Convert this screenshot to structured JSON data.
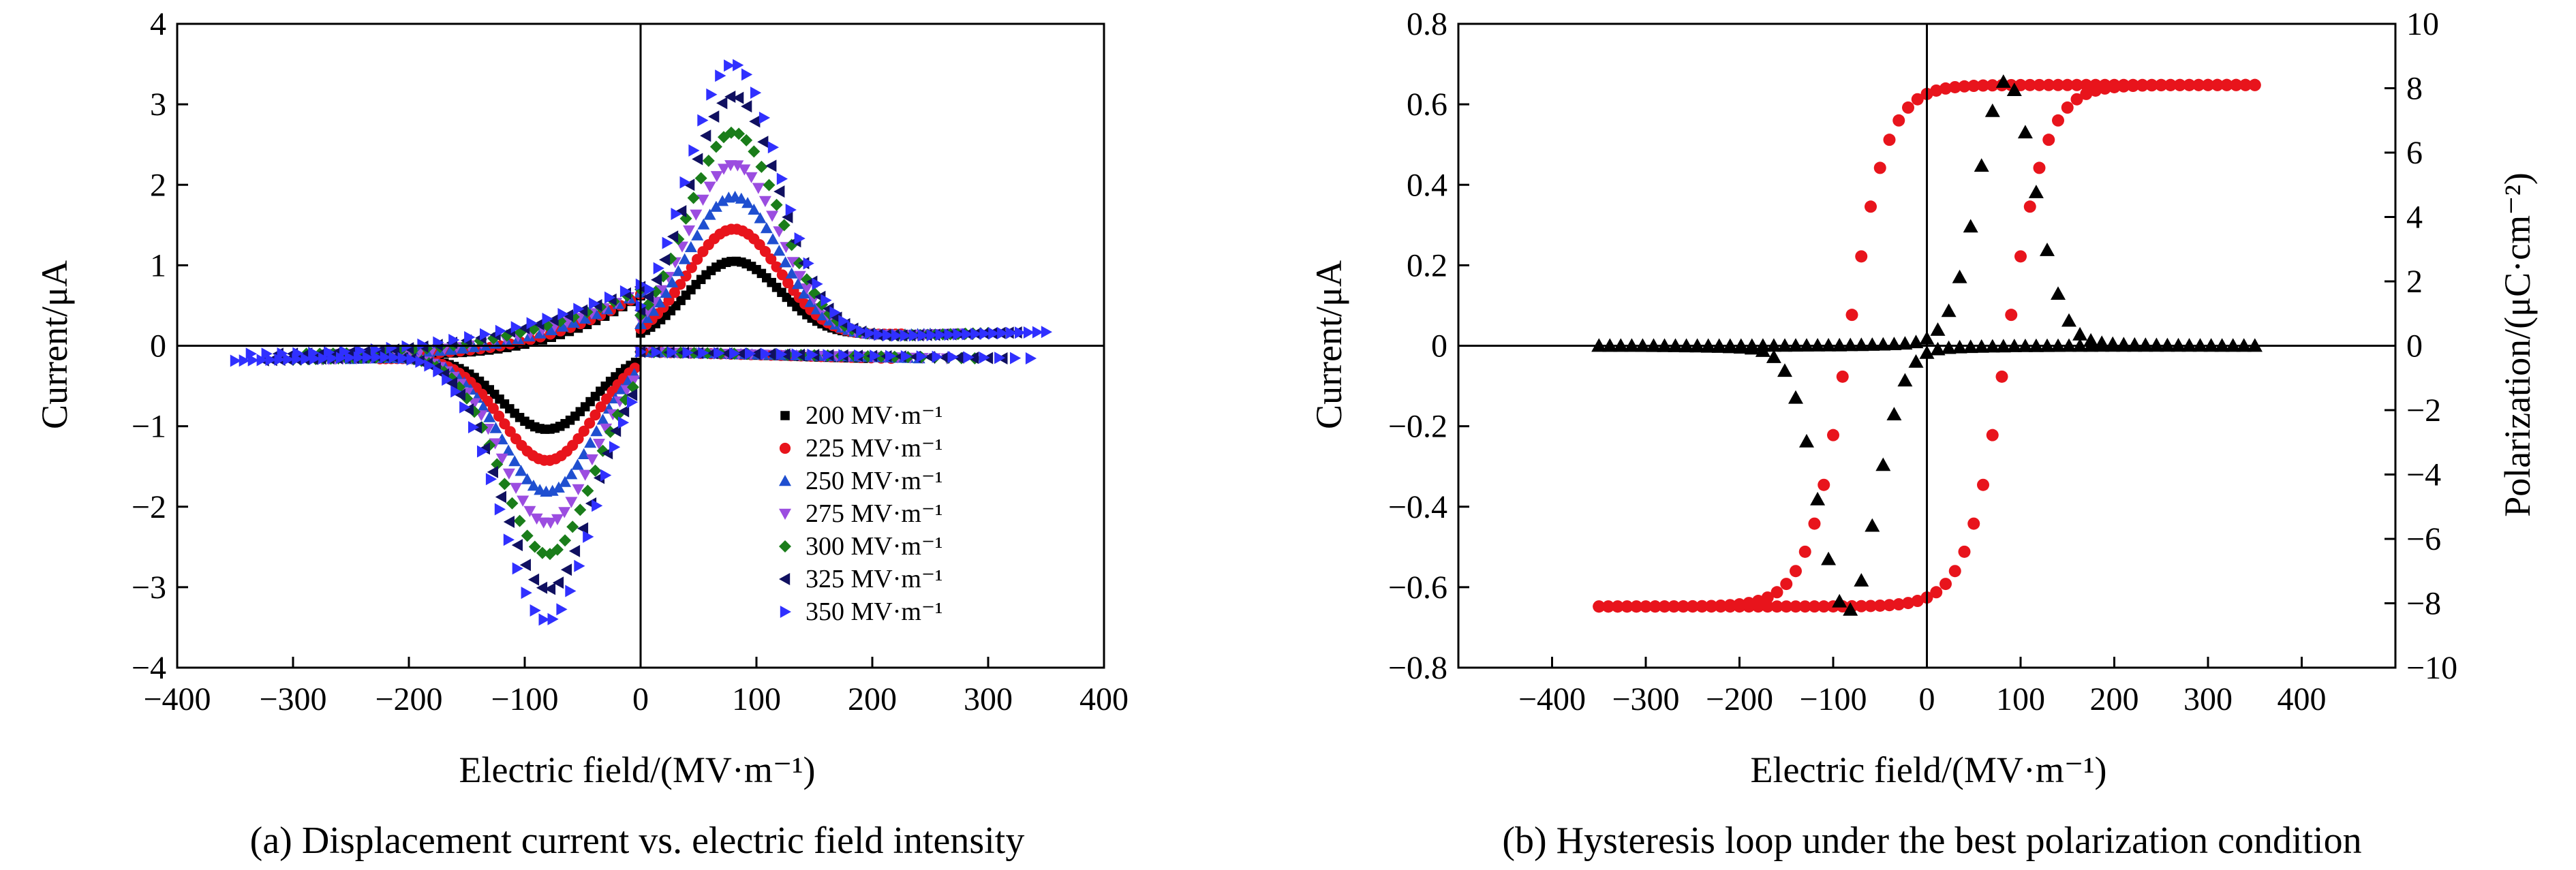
{
  "captions": {
    "a": "(a) Displacement current vs. electric field intensity",
    "b": "(b) Hysteresis loop under the best polarization condition"
  },
  "chart_data": [
    {
      "type": "scatter",
      "id": "a",
      "xlabel": "Electric field/(MV·m⁻¹)",
      "ylabel": "Current/μA",
      "xlim": [
        -400,
        400
      ],
      "ylim": [
        -4,
        4
      ],
      "xticks": [
        -400,
        -300,
        -200,
        -100,
        0,
        100,
        200,
        300,
        400
      ],
      "yticks": [
        -4,
        -3,
        -2,
        -1,
        0,
        1,
        2,
        3,
        4
      ],
      "legend_position": "bottom-right",
      "series": [
        {
          "name": "200 MV·m⁻¹",
          "Emax": 200,
          "peak": 1.05,
          "i0": 0.62,
          "color": "#000000",
          "marker": "square"
        },
        {
          "name": "225 MV·m⁻¹",
          "Emax": 225,
          "peak": 1.45,
          "i0": 0.64,
          "color": "#e8141c",
          "marker": "circle"
        },
        {
          "name": "250 MV·m⁻¹",
          "Emax": 250,
          "peak": 1.85,
          "i0": 0.66,
          "color": "#1f4fd0",
          "marker": "triangle-up"
        },
        {
          "name": "275 MV·m⁻¹",
          "Emax": 275,
          "peak": 2.25,
          "i0": 0.68,
          "color": "#9b4de0",
          "marker": "triangle-down"
        },
        {
          "name": "300 MV·m⁻¹",
          "Emax": 300,
          "peak": 2.65,
          "i0": 0.7,
          "color": "#1a7d1a",
          "marker": "diamond"
        },
        {
          "name": "325 MV·m⁻¹",
          "Emax": 325,
          "peak": 3.1,
          "i0": 0.73,
          "color": "#101060",
          "marker": "triangle-left"
        },
        {
          "name": "350 MV·m⁻¹",
          "Emax": 350,
          "peak": 3.5,
          "i0": 0.76,
          "color": "#3030ff",
          "marker": "triangle-right"
        }
      ]
    },
    {
      "type": "scatter",
      "id": "b",
      "xlabel": "Electric field/(MV·m⁻¹)",
      "ylabel": "Current/μA",
      "y2label": "Polarization/(μC·cm⁻²)",
      "xlim": [
        -500,
        500
      ],
      "ylim": [
        -0.8,
        0.8
      ],
      "y2lim": [
        -10,
        10
      ],
      "xticks": [
        -400,
        -300,
        -200,
        -100,
        0,
        100,
        200,
        300,
        400
      ],
      "yticks": [
        -0.8,
        -0.6,
        -0.4,
        -0.2,
        0,
        0.2,
        0.4,
        0.6,
        0.8
      ],
      "y2ticks": [
        -10,
        -8,
        -6,
        -4,
        -2,
        0,
        2,
        4,
        6,
        8,
        10
      ],
      "series": [
        {
          "name": "Current",
          "axis": "left",
          "Emax": 350,
          "peak": 0.65,
          "peak_E": 85,
          "color": "#000000",
          "marker": "triangle-up"
        },
        {
          "name": "Polarization",
          "axis": "right",
          "Emax": 350,
          "Pmax": 8.1,
          "Ec": 85,
          "color": "#e8141c",
          "marker": "circle"
        }
      ]
    }
  ]
}
